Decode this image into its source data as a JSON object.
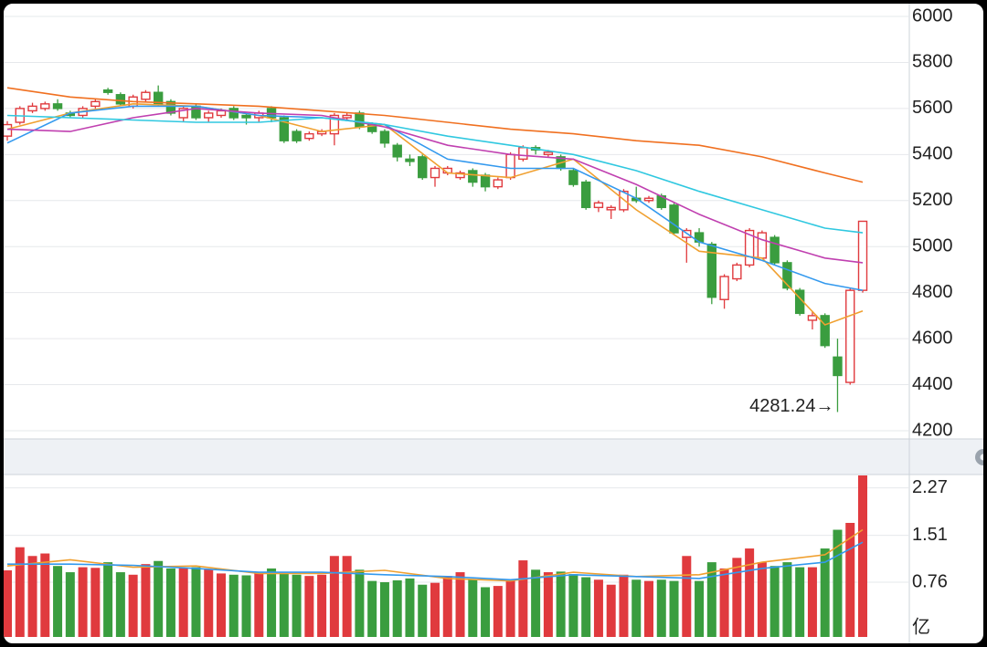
{
  "chart_data": {
    "type": "candlestick",
    "up_color": "#e03a3e",
    "down_color": "#3a9d3f",
    "ylim": [
      4200,
      6000
    ],
    "yticks": [
      4200,
      4400,
      4600,
      4800,
      5000,
      5200,
      5400,
      5600,
      5800,
      6000
    ],
    "grid": true,
    "open": [
      5480,
      5540,
      5590,
      5600,
      5620,
      5580,
      5570,
      5610,
      5680,
      5660,
      5610,
      5640,
      5670,
      5630,
      5560,
      5610,
      5560,
      5570,
      5600,
      5570,
      5560,
      5600,
      5560,
      5500,
      5470,
      5490,
      5490,
      5560,
      5580,
      5530,
      5500,
      5440,
      5380,
      5390,
      5300,
      5320,
      5300,
      5330,
      5310,
      5260,
      5300,
      5380,
      5430,
      5400,
      5390,
      5330,
      5280,
      5170,
      5160,
      5160,
      5210,
      5200,
      5220,
      5180,
      5040,
      5060,
      5010,
      4770,
      4860,
      4920,
      4950,
      5040,
      4930,
      4810,
      4680,
      4700,
      4520,
      4410,
      4810
    ],
    "high": [
      5545,
      5610,
      5625,
      5630,
      5640,
      5590,
      5610,
      5640,
      5690,
      5670,
      5660,
      5680,
      5700,
      5640,
      5610,
      5620,
      5590,
      5600,
      5610,
      5580,
      5590,
      5610,
      5570,
      5510,
      5500,
      5510,
      5580,
      5580,
      5590,
      5540,
      5510,
      5450,
      5400,
      5400,
      5350,
      5350,
      5330,
      5340,
      5320,
      5300,
      5410,
      5440,
      5440,
      5420,
      5400,
      5340,
      5290,
      5200,
      5180,
      5250,
      5260,
      5220,
      5230,
      5190,
      5080,
      5080,
      5020,
      4880,
      4930,
      5080,
      5070,
      5050,
      4940,
      4820,
      4720,
      4710,
      4600,
      4820,
      5110
    ],
    "low": [
      5460,
      5530,
      5580,
      5590,
      5590,
      5560,
      5560,
      5600,
      5660,
      5610,
      5600,
      5630,
      5610,
      5570,
      5540,
      5550,
      5540,
      5560,
      5550,
      5530,
      5540,
      5540,
      5450,
      5450,
      5460,
      5480,
      5440,
      5550,
      5510,
      5490,
      5430,
      5370,
      5350,
      5290,
      5260,
      5310,
      5290,
      5260,
      5240,
      5250,
      5290,
      5370,
      5400,
      5390,
      5330,
      5260,
      5160,
      5150,
      5120,
      5150,
      5190,
      5190,
      5160,
      5050,
      4930,
      5000,
      4750,
      4730,
      4850,
      4910,
      4950,
      4920,
      4810,
      4700,
      4640,
      4560,
      4281.24,
      4400,
      4800
    ],
    "close": [
      5530,
      5600,
      5610,
      5620,
      5600,
      5570,
      5600,
      5630,
      5670,
      5620,
      5650,
      5670,
      5620,
      5580,
      5600,
      5560,
      5580,
      5590,
      5560,
      5560,
      5580,
      5560,
      5460,
      5460,
      5490,
      5500,
      5570,
      5570,
      5520,
      5500,
      5450,
      5390,
      5370,
      5300,
      5340,
      5340,
      5320,
      5280,
      5260,
      5290,
      5400,
      5430,
      5420,
      5410,
      5340,
      5270,
      5170,
      5190,
      5170,
      5240,
      5200,
      5210,
      5170,
      5060,
      5070,
      5020,
      4780,
      4870,
      4920,
      5070,
      5060,
      4930,
      4820,
      4710,
      4700,
      4570,
      4440,
      4810,
      5110
    ],
    "ma_x": [
      0,
      5,
      10,
      15,
      20,
      25,
      30,
      35,
      40,
      45,
      50,
      55,
      60,
      65,
      68
    ],
    "ma_lines": [
      {
        "color": "#f0a030",
        "values": [
          5510,
          5580,
          5620,
          5610,
          5570,
          5500,
          5530,
          5320,
          5300,
          5380,
          5160,
          4980,
          4950,
          4660,
          4720
        ]
      },
      {
        "color": "#3399ee",
        "values": [
          5450,
          5580,
          5610,
          5610,
          5570,
          5560,
          5530,
          5380,
          5340,
          5340,
          5210,
          5020,
          4940,
          4840,
          4810
        ]
      },
      {
        "color": "#c040b0",
        "values": [
          5510,
          5500,
          5560,
          5600,
          5580,
          5570,
          5520,
          5440,
          5400,
          5380,
          5270,
          5140,
          5030,
          4950,
          4930
        ]
      },
      {
        "color": "#30c8e0",
        "values": [
          5570,
          5560,
          5550,
          5540,
          5540,
          5560,
          5530,
          5480,
          5440,
          5400,
          5330,
          5240,
          5160,
          5080,
          5060
        ]
      },
      {
        "color": "#f07020",
        "values": [
          5690,
          5650,
          5630,
          5620,
          5610,
          5590,
          5570,
          5540,
          5510,
          5490,
          5460,
          5440,
          5390,
          5320,
          5280
        ]
      }
    ],
    "annotation": "4281.24→",
    "volume": [
      0.95,
      1.32,
      1.18,
      1.22,
      1.02,
      0.92,
      1.0,
      0.99,
      1.08,
      0.92,
      0.88,
      1.05,
      1.1,
      0.98,
      0.99,
      1.0,
      0.97,
      0.9,
      0.88,
      0.87,
      0.9,
      0.98,
      0.9,
      0.88,
      0.86,
      0.88,
      1.18,
      1.18,
      0.96,
      0.78,
      0.76,
      0.79,
      0.82,
      0.72,
      0.75,
      0.86,
      0.92,
      0.8,
      0.68,
      0.7,
      0.8,
      1.11,
      0.96,
      0.92,
      0.93,
      0.89,
      0.84,
      0.8,
      0.72,
      0.88,
      0.8,
      0.78,
      0.8,
      0.78,
      1.18,
      0.78,
      1.08,
      0.98,
      1.15,
      1.3,
      1.08,
      1.02,
      1.08,
      1.0,
      1.0,
      1.3,
      1.6,
      1.71,
      2.6
    ],
    "vol_ylim": [
      0,
      2.47
    ],
    "vol_yticks": [
      0.76,
      1.51,
      2.27
    ],
    "vol_unit": "亿",
    "vol_ma_lines": [
      {
        "color": "#f0a030",
        "values": [
          1.02,
          1.12,
          1.0,
          1.02,
          0.9,
          0.9,
          0.95,
          0.82,
          0.78,
          0.92,
          0.85,
          0.88,
          1.08,
          1.2,
          1.6
        ]
      },
      {
        "color": "#3399ee",
        "values": [
          1.05,
          1.05,
          1.03,
          0.98,
          0.92,
          0.92,
          0.88,
          0.85,
          0.8,
          0.88,
          0.85,
          0.82,
          0.98,
          1.08,
          1.4
        ]
      }
    ]
  }
}
